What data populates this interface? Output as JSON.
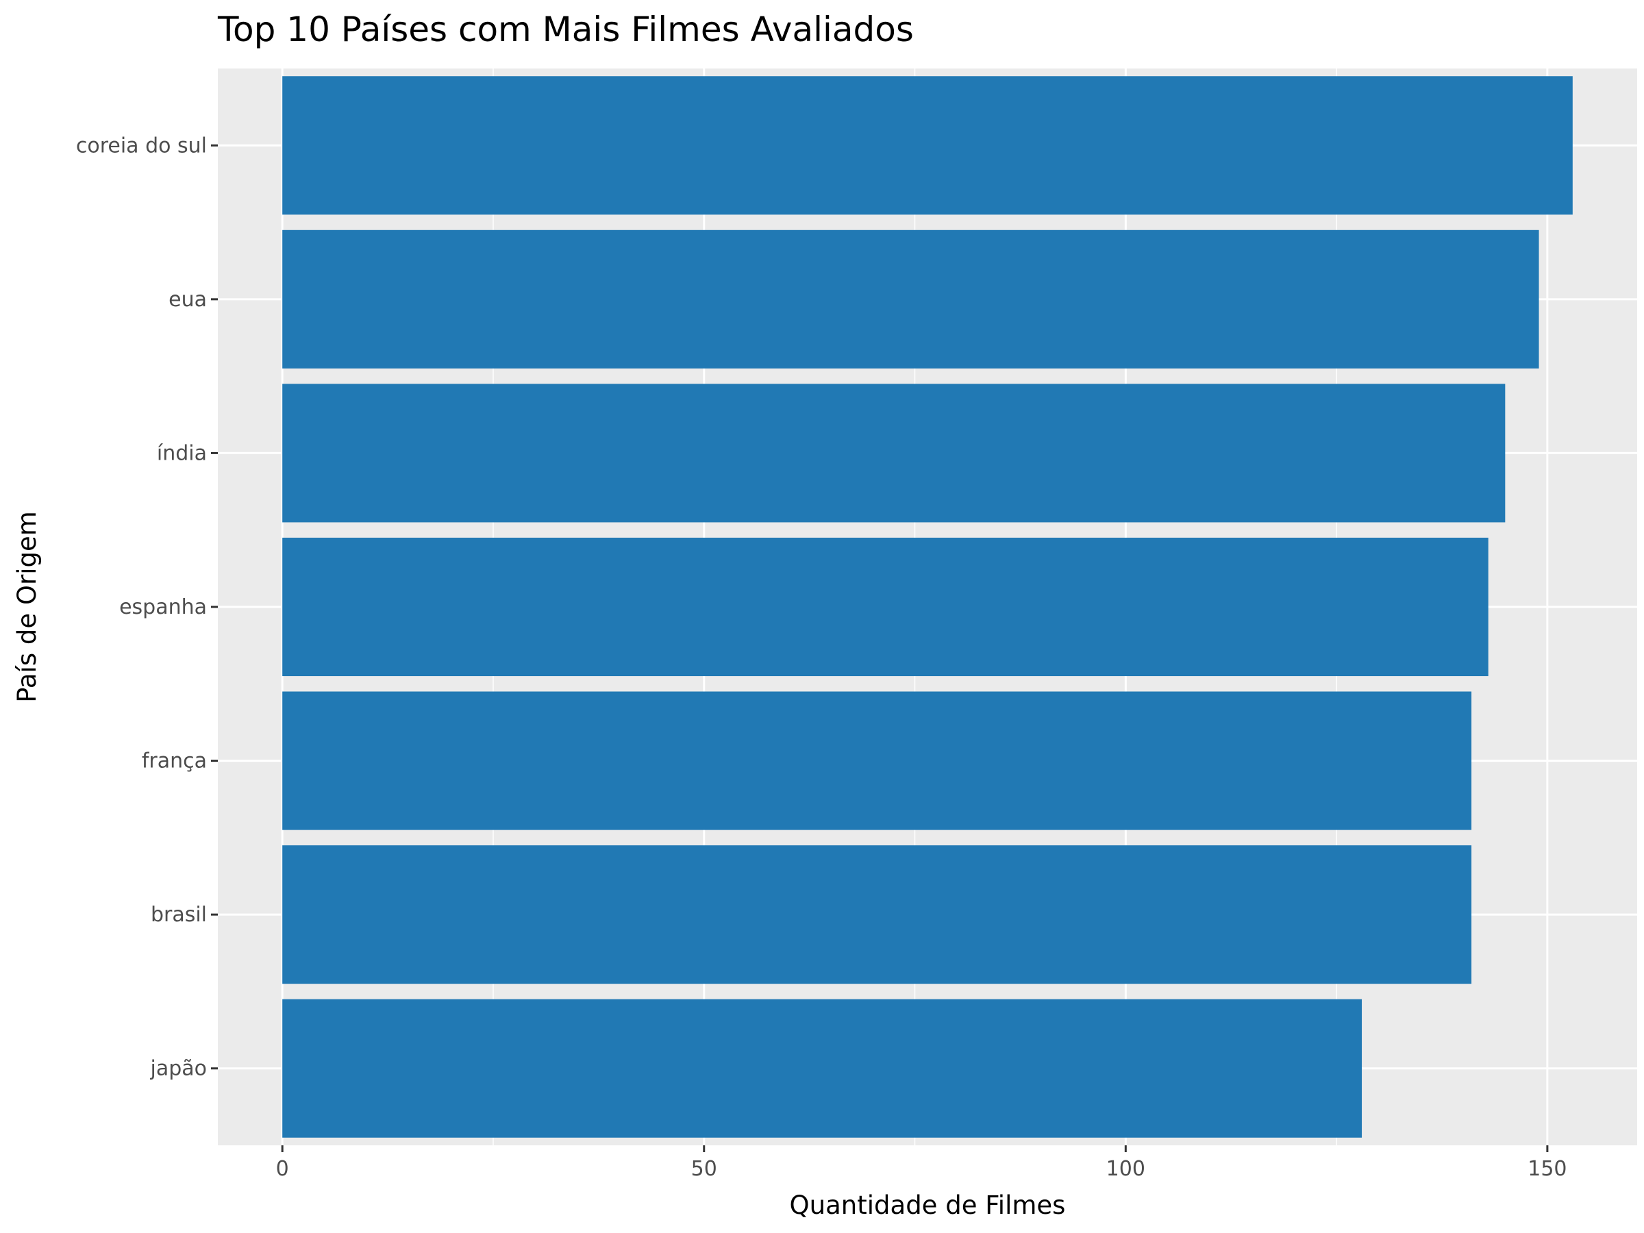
{
  "chart_data": {
    "type": "bar",
    "orientation": "horizontal",
    "title": "Top 10 Países com Mais Filmes Avaliados",
    "xlabel": "Quantidade de Filmes",
    "ylabel": "País de Origem",
    "categories": [
      "coreia do sul",
      "eua",
      "índia",
      "espanha",
      "frança",
      "brasil",
      "japão"
    ],
    "values": [
      153,
      149,
      145,
      143,
      141,
      141,
      128
    ],
    "xlim": [
      -7.65,
      160.65
    ],
    "x_ticks": [
      0,
      50,
      100,
      150
    ],
    "x_tick_labels": [
      "0",
      "50",
      "100",
      "150"
    ],
    "grid": true,
    "legend": "none",
    "colors": {
      "bar": "#2179B4",
      "panel": "#EBEBEB",
      "grid_major": "#FFFFFF",
      "background": "#FFFFFF"
    }
  }
}
